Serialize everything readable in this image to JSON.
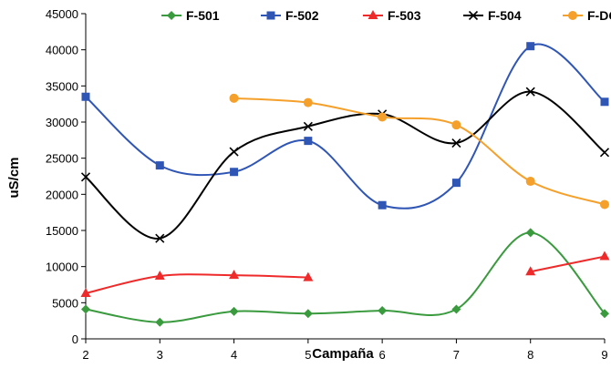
{
  "chart_data": {
    "type": "line",
    "title": "",
    "xlabel": "Campaña",
    "ylabel": "uS/cm",
    "x": [
      2,
      3,
      4,
      5,
      6,
      7,
      8,
      9
    ],
    "xlim": [
      2,
      9
    ],
    "ylim": [
      0,
      45000
    ],
    "yticks": [
      0,
      5000,
      10000,
      15000,
      20000,
      25000,
      30000,
      35000,
      40000,
      45000
    ],
    "grid": false,
    "legend_position": "top",
    "smooth": true,
    "series": [
      {
        "name": "F-501",
        "color": "#3a9a3e",
        "marker": "diamond",
        "points": [
          [
            2,
            4100
          ],
          [
            3,
            2300
          ],
          [
            4,
            3800
          ],
          [
            5,
            3500
          ],
          [
            6,
            3900
          ],
          [
            7,
            4100
          ],
          [
            8,
            14700
          ],
          [
            9,
            3500
          ]
        ]
      },
      {
        "name": "F-502",
        "color": "#2f55b5",
        "marker": "square",
        "points": [
          [
            2,
            33500
          ],
          [
            3,
            24000
          ],
          [
            4,
            23100
          ],
          [
            5,
            27400
          ],
          [
            6,
            18500
          ],
          [
            7,
            21600
          ],
          [
            8,
            40500
          ],
          [
            9,
            32800
          ]
        ]
      },
      {
        "name": "F-503",
        "color": "#ee2a2a",
        "marker": "triangle",
        "segments": [
          [
            [
              2,
              6300
            ],
            [
              3,
              8700
            ],
            [
              4,
              8800
            ],
            [
              5,
              8500
            ]
          ],
          [
            [
              8,
              9300
            ],
            [
              9,
              11400
            ]
          ]
        ]
      },
      {
        "name": "F-504",
        "color": "#000000",
        "marker": "x",
        "points": [
          [
            2,
            22400
          ],
          [
            3,
            13900
          ],
          [
            4,
            25900
          ],
          [
            5,
            29400
          ],
          [
            6,
            31100
          ],
          [
            7,
            27100
          ],
          [
            8,
            34200
          ],
          [
            9,
            25800
          ]
        ]
      },
      {
        "name": "F-DGI",
        "color": "#f5a02a",
        "marker": "circle",
        "points": [
          [
            4,
            33300
          ],
          [
            5,
            32700
          ],
          [
            6,
            30700
          ],
          [
            7,
            29600
          ],
          [
            8,
            21800
          ],
          [
            9,
            18600
          ]
        ]
      }
    ]
  }
}
